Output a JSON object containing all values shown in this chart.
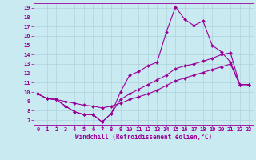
{
  "xlabel": "Windchill (Refroidissement éolien,°C)",
  "bg_color": "#c8eaf0",
  "line_color": "#990099",
  "grid_color": "#aaccd8",
  "xlim": [
    -0.5,
    23.5
  ],
  "ylim": [
    6.5,
    19.5
  ],
  "xticks": [
    0,
    1,
    2,
    3,
    4,
    5,
    6,
    7,
    8,
    9,
    10,
    11,
    12,
    13,
    14,
    15,
    16,
    17,
    18,
    19,
    20,
    21,
    22,
    23
  ],
  "yticks": [
    7,
    8,
    9,
    10,
    11,
    12,
    13,
    14,
    15,
    16,
    17,
    18,
    19
  ],
  "series1_x": [
    0,
    1,
    2,
    3,
    4,
    5,
    6,
    7,
    8,
    9,
    10,
    11,
    12,
    13,
    14,
    15,
    16,
    17,
    18,
    19,
    20,
    21,
    22,
    23
  ],
  "series1_y": [
    9.8,
    9.3,
    9.2,
    8.5,
    7.9,
    7.6,
    7.6,
    6.8,
    7.7,
    10.0,
    11.8,
    12.2,
    12.8,
    13.2,
    16.4,
    19.1,
    17.8,
    17.1,
    17.6,
    15.0,
    14.3,
    13.2,
    10.8,
    10.8
  ],
  "series2_x": [
    0,
    1,
    2,
    3,
    4,
    5,
    6,
    7,
    8,
    9,
    10,
    11,
    12,
    13,
    14,
    15,
    16,
    17,
    18,
    19,
    20,
    21,
    22,
    23
  ],
  "series2_y": [
    9.8,
    9.3,
    9.2,
    8.5,
    7.9,
    7.6,
    7.6,
    6.8,
    7.7,
    9.2,
    9.8,
    10.3,
    10.8,
    11.3,
    11.8,
    12.5,
    12.8,
    13.0,
    13.3,
    13.6,
    14.0,
    14.2,
    10.8,
    10.8
  ],
  "series3_x": [
    0,
    1,
    2,
    3,
    4,
    5,
    6,
    7,
    8,
    9,
    10,
    11,
    12,
    13,
    14,
    15,
    16,
    17,
    18,
    19,
    20,
    21,
    22,
    23
  ],
  "series3_y": [
    9.8,
    9.3,
    9.2,
    9.0,
    8.8,
    8.6,
    8.5,
    8.3,
    8.5,
    8.8,
    9.2,
    9.5,
    9.8,
    10.2,
    10.7,
    11.2,
    11.5,
    11.8,
    12.1,
    12.4,
    12.7,
    13.0,
    10.8,
    10.8
  ],
  "tick_fontsize": 5.0,
  "xlabel_fontsize": 5.5,
  "marker_size": 2.0,
  "line_width": 0.8
}
